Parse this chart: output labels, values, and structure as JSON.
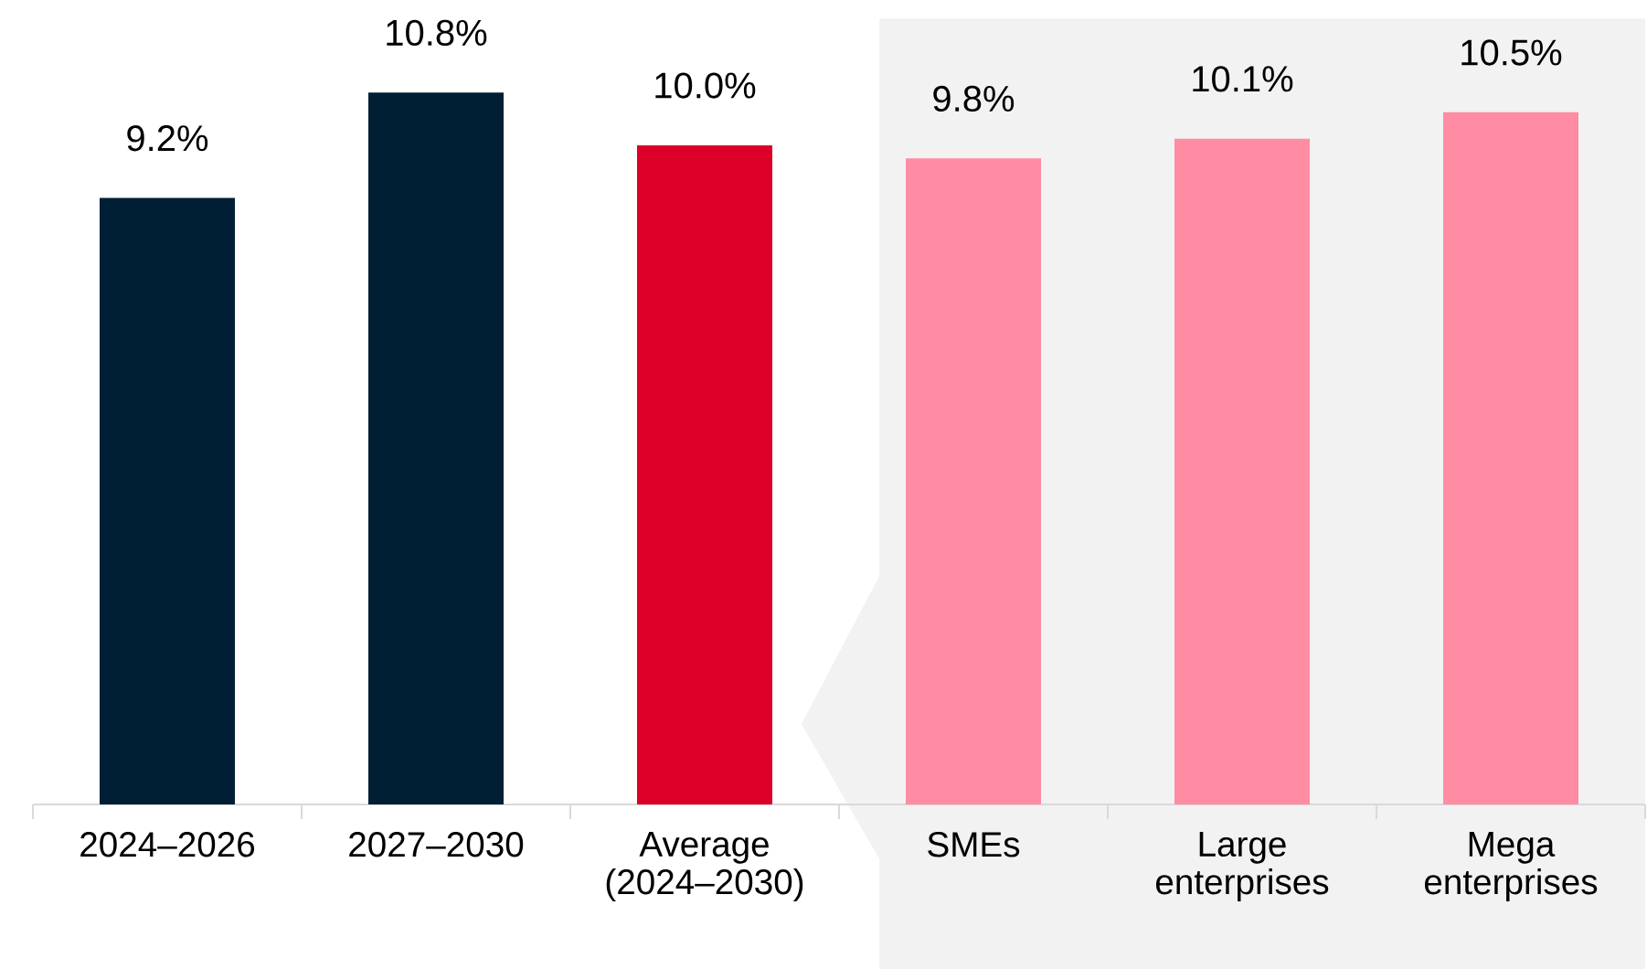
{
  "chart_data": {
    "type": "bar",
    "categories": [
      "2024–2026",
      "2027–2030",
      "Average (2024–2030)",
      "SMEs",
      "Large enterprises",
      "Mega enterprises"
    ],
    "values": [
      9.2,
      10.8,
      10.0,
      9.8,
      10.1,
      10.5
    ],
    "value_labels": [
      "9.2%",
      "10.8%",
      "10.0%",
      "9.8%",
      "10.1%",
      "10.5%"
    ],
    "colors": [
      "#001f35",
      "#001f35",
      "#dc0029",
      "#ff8ca3",
      "#ff8ca3",
      "#ff8ca3"
    ],
    "tick_labels": "x"
  }
}
